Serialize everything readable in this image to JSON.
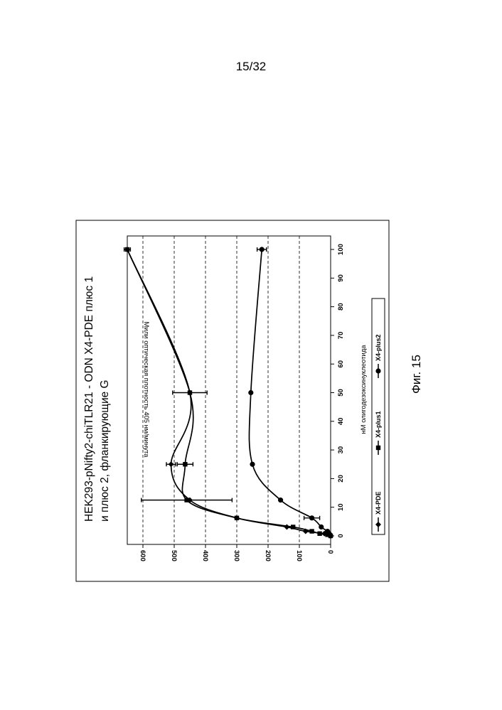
{
  "page": {
    "number": "15/32",
    "caption": "Фиг. 15"
  },
  "chart_data": {
    "type": "line",
    "title_lines": [
      "HEK293-pNifty2-chiTLR21 - ODN X4-PDE плюс 1",
      "и плюс 2, фланкирующие G"
    ],
    "xlabel": "нМ олигодезоксинуклеотида",
    "ylabel": "Мили оптическая плотность 405 нм/минута",
    "xlim": [
      0,
      100
    ],
    "ylim": [
      0,
      650
    ],
    "xticks": [
      0,
      10,
      20,
      30,
      40,
      50,
      60,
      70,
      80,
      90,
      100
    ],
    "yticks": [
      0,
      100,
      200,
      300,
      400,
      500,
      600
    ],
    "grid": "horizontal dashed",
    "legend_position": "bottom",
    "series": [
      {
        "name": "X4-PDE",
        "marker": "diamond",
        "x": [
          0,
          0.4,
          0.8,
          1.6,
          3.1,
          6.25,
          12.5,
          25,
          50,
          100
        ],
        "y": [
          0,
          5,
          20,
          80,
          140,
          300,
          450,
          510,
          450,
          650
        ],
        "err": [
          0,
          0,
          0,
          0,
          0,
          0,
          0,
          15,
          55,
          10
        ]
      },
      {
        "name": "X4-plus1",
        "marker": "square",
        "x": [
          0,
          0.4,
          0.8,
          1.6,
          3.1,
          6.25,
          12.5,
          25,
          50,
          100
        ],
        "y": [
          0,
          10,
          35,
          60,
          120,
          300,
          460,
          465,
          450,
          650
        ],
        "err": [
          0,
          0,
          0,
          0,
          0,
          0,
          145,
          25,
          0,
          0
        ]
      },
      {
        "name": "X4-plus2",
        "marker": "circle",
        "x": [
          0,
          0.4,
          0.8,
          1.6,
          3.1,
          6.25,
          12.5,
          25,
          50,
          100
        ],
        "y": [
          0,
          2,
          5,
          10,
          30,
          60,
          160,
          250,
          255,
          220
        ],
        "err": [
          0,
          0,
          0,
          0,
          0,
          25,
          0,
          0,
          0,
          15
        ]
      }
    ]
  }
}
